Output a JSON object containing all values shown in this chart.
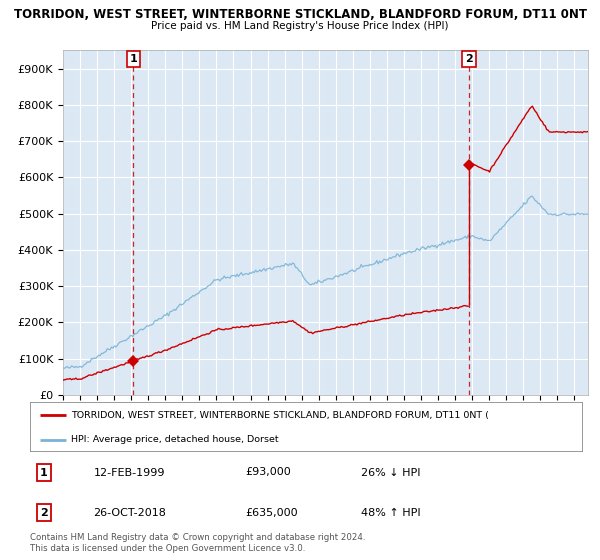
{
  "title": "TORRIDON, WEST STREET, WINTERBORNE STICKLAND, BLANDFORD FORUM, DT11 0NT",
  "subtitle": "Price paid vs. HM Land Registry's House Price Index (HPI)",
  "background_color": "#dce9f5",
  "grid_color": "#ffffff",
  "hpi_color": "#7ab3d4",
  "red_color": "#cc0000",
  "sale1_date_num": 1999.12,
  "sale1_price": 93000,
  "sale2_date_num": 2018.82,
  "sale2_price": 635000,
  "ylim_max": 950000,
  "xlim_min": 1995.0,
  "xlim_max": 2025.8,
  "legend_label_red": "TORRIDON, WEST STREET, WINTERBORNE STICKLAND, BLANDFORD FORUM, DT11 0NT (",
  "legend_label_blue": "HPI: Average price, detached house, Dorset",
  "table_rows": [
    [
      "1",
      "12-FEB-1999",
      "£93,000",
      "26% ↓ HPI"
    ],
    [
      "2",
      "26-OCT-2018",
      "£635,000",
      "48% ↑ HPI"
    ]
  ],
  "footnote": "Contains HM Land Registry data © Crown copyright and database right 2024.\nThis data is licensed under the Open Government Licence v3.0.",
  "ytick_labels": [
    "£0",
    "£100K",
    "£200K",
    "£300K",
    "£400K",
    "£500K",
    "£600K",
    "£700K",
    "£800K",
    "£900K"
  ],
  "ytick_values": [
    0,
    100000,
    200000,
    300000,
    400000,
    500000,
    600000,
    700000,
    800000,
    900000
  ]
}
